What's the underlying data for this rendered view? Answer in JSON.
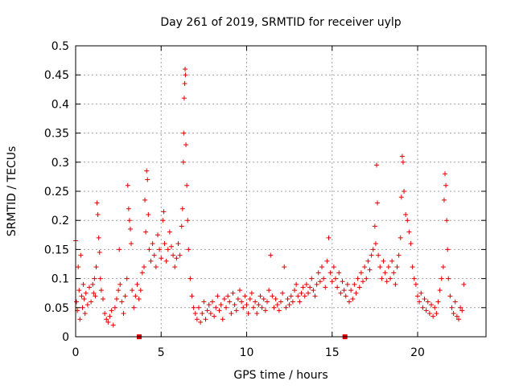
{
  "chart_data": {
    "type": "scatter",
    "title": "Day 261 of 2019, SRMTID for receiver uylp",
    "xlabel": "GPS time / hours",
    "ylabel": "SRMTID / TECUs",
    "xlim": [
      0,
      24
    ],
    "ylim": [
      0,
      0.5
    ],
    "grid": true,
    "x_ticks": [
      0,
      5,
      10,
      15,
      20
    ],
    "x_tick_labels": [
      "0",
      "5",
      "10",
      "15",
      "20"
    ],
    "y_ticks": [
      0,
      0.05,
      0.1,
      0.15,
      0.2,
      0.25,
      0.3,
      0.35,
      0.4,
      0.45,
      0.5
    ],
    "y_tick_labels": [
      "0",
      "0.05",
      "0.1",
      "0.15",
      "0.2",
      "0.25",
      "0.3",
      "0.35",
      "0.4",
      "0.45",
      "0.5"
    ],
    "series": [
      {
        "name": "SRMTID",
        "color": "#e00000",
        "marker": "plus",
        "points": [
          [
            0.0,
            0.165
          ],
          [
            0.05,
            0.06
          ],
          [
            0.1,
            0.045
          ],
          [
            0.15,
            0.12
          ],
          [
            0.2,
            0.08
          ],
          [
            0.25,
            0.03
          ],
          [
            0.3,
            0.14
          ],
          [
            0.35,
            0.07
          ],
          [
            0.4,
            0.05
          ],
          [
            0.45,
            0.09
          ],
          [
            0.5,
            0.065
          ],
          [
            0.55,
            0.04
          ],
          [
            0.6,
            0.075
          ],
          [
            0.7,
            0.055
          ],
          [
            0.8,
            0.085
          ],
          [
            0.9,
            0.06
          ],
          [
            1.0,
            0.09
          ],
          [
            1.05,
            0.075
          ],
          [
            1.1,
            0.1
          ],
          [
            1.15,
            0.07
          ],
          [
            1.2,
            0.12
          ],
          [
            1.25,
            0.23
          ],
          [
            1.3,
            0.21
          ],
          [
            1.35,
            0.17
          ],
          [
            1.4,
            0.145
          ],
          [
            1.45,
            0.1
          ],
          [
            1.5,
            0.08
          ],
          [
            1.6,
            0.065
          ],
          [
            1.7,
            0.04
          ],
          [
            1.8,
            0.03
          ],
          [
            1.9,
            0.025
          ],
          [
            2.0,
            0.035
          ],
          [
            2.1,
            0.045
          ],
          [
            2.2,
            0.02
          ],
          [
            2.3,
            0.05
          ],
          [
            2.4,
            0.065
          ],
          [
            2.5,
            0.08
          ],
          [
            2.55,
            0.15
          ],
          [
            2.6,
            0.09
          ],
          [
            2.7,
            0.06
          ],
          [
            2.8,
            0.04
          ],
          [
            2.9,
            0.07
          ],
          [
            3.0,
            0.1
          ],
          [
            3.05,
            0.26
          ],
          [
            3.1,
            0.22
          ],
          [
            3.15,
            0.2
          ],
          [
            3.2,
            0.185
          ],
          [
            3.25,
            0.16
          ],
          [
            3.3,
            0.08
          ],
          [
            3.4,
            0.05
          ],
          [
            3.5,
            0.07
          ],
          [
            3.6,
            0.09
          ],
          [
            3.7,
            0.065
          ],
          [
            3.8,
            0.08
          ],
          [
            3.9,
            0.11
          ],
          [
            4.0,
            0.12
          ],
          [
            4.05,
            0.235
          ],
          [
            4.1,
            0.18
          ],
          [
            4.15,
            0.285
          ],
          [
            4.2,
            0.27
          ],
          [
            4.25,
            0.21
          ],
          [
            4.3,
            0.15
          ],
          [
            4.4,
            0.13
          ],
          [
            4.5,
            0.16
          ],
          [
            4.6,
            0.14
          ],
          [
            4.7,
            0.12
          ],
          [
            4.8,
            0.175
          ],
          [
            4.9,
            0.15
          ],
          [
            5.0,
            0.135
          ],
          [
            5.1,
            0.2
          ],
          [
            5.15,
            0.215
          ],
          [
            5.2,
            0.16
          ],
          [
            5.3,
            0.13
          ],
          [
            5.4,
            0.15
          ],
          [
            5.5,
            0.18
          ],
          [
            5.6,
            0.155
          ],
          [
            5.7,
            0.14
          ],
          [
            5.8,
            0.12
          ],
          [
            5.9,
            0.135
          ],
          [
            6.0,
            0.16
          ],
          [
            6.1,
            0.14
          ],
          [
            6.2,
            0.19
          ],
          [
            6.25,
            0.22
          ],
          [
            6.3,
            0.3
          ],
          [
            6.32,
            0.35
          ],
          [
            6.35,
            0.41
          ],
          [
            6.38,
            0.435
          ],
          [
            6.4,
            0.46
          ],
          [
            6.42,
            0.45
          ],
          [
            6.45,
            0.33
          ],
          [
            6.5,
            0.26
          ],
          [
            6.55,
            0.2
          ],
          [
            6.6,
            0.15
          ],
          [
            6.7,
            0.1
          ],
          [
            6.8,
            0.07
          ],
          [
            6.9,
            0.05
          ],
          [
            7.0,
            0.04
          ],
          [
            7.1,
            0.03
          ],
          [
            7.2,
            0.05
          ],
          [
            7.3,
            0.025
          ],
          [
            7.4,
            0.04
          ],
          [
            7.5,
            0.06
          ],
          [
            7.6,
            0.03
          ],
          [
            7.7,
            0.045
          ],
          [
            7.8,
            0.055
          ],
          [
            7.9,
            0.04
          ],
          [
            8.0,
            0.06
          ],
          [
            8.1,
            0.035
          ],
          [
            8.2,
            0.05
          ],
          [
            8.3,
            0.07
          ],
          [
            8.4,
            0.045
          ],
          [
            8.5,
            0.055
          ],
          [
            8.6,
            0.03
          ],
          [
            8.7,
            0.065
          ],
          [
            8.8,
            0.05
          ],
          [
            8.9,
            0.07
          ],
          [
            9.0,
            0.06
          ],
          [
            9.1,
            0.04
          ],
          [
            9.2,
            0.075
          ],
          [
            9.3,
            0.055
          ],
          [
            9.4,
            0.045
          ],
          [
            9.5,
            0.065
          ],
          [
            9.6,
            0.08
          ],
          [
            9.7,
            0.06
          ],
          [
            9.8,
            0.05
          ],
          [
            9.9,
            0.07
          ],
          [
            10.0,
            0.055
          ],
          [
            10.1,
            0.04
          ],
          [
            10.2,
            0.065
          ],
          [
            10.3,
            0.075
          ],
          [
            10.4,
            0.05
          ],
          [
            10.5,
            0.06
          ],
          [
            10.6,
            0.04
          ],
          [
            10.7,
            0.055
          ],
          [
            10.8,
            0.07
          ],
          [
            10.9,
            0.05
          ],
          [
            11.0,
            0.065
          ],
          [
            11.1,
            0.045
          ],
          [
            11.2,
            0.06
          ],
          [
            11.3,
            0.08
          ],
          [
            11.4,
            0.14
          ],
          [
            11.5,
            0.07
          ],
          [
            11.6,
            0.05
          ],
          [
            11.7,
            0.065
          ],
          [
            11.8,
            0.055
          ],
          [
            11.9,
            0.045
          ],
          [
            12.0,
            0.06
          ],
          [
            12.1,
            0.075
          ],
          [
            12.2,
            0.12
          ],
          [
            12.3,
            0.05
          ],
          [
            12.4,
            0.065
          ],
          [
            12.5,
            0.055
          ],
          [
            12.6,
            0.07
          ],
          [
            12.7,
            0.06
          ],
          [
            12.8,
            0.08
          ],
          [
            12.9,
            0.09
          ],
          [
            13.0,
            0.07
          ],
          [
            13.1,
            0.06
          ],
          [
            13.2,
            0.075
          ],
          [
            13.3,
            0.085
          ],
          [
            13.4,
            0.07
          ],
          [
            13.5,
            0.09
          ],
          [
            13.6,
            0.075
          ],
          [
            13.7,
            0.085
          ],
          [
            13.8,
            0.1
          ],
          [
            13.9,
            0.08
          ],
          [
            14.0,
            0.07
          ],
          [
            14.1,
            0.09
          ],
          [
            14.2,
            0.11
          ],
          [
            14.3,
            0.095
          ],
          [
            14.4,
            0.12
          ],
          [
            14.5,
            0.1
          ],
          [
            14.6,
            0.085
          ],
          [
            14.7,
            0.13
          ],
          [
            14.8,
            0.17
          ],
          [
            14.9,
            0.11
          ],
          [
            15.0,
            0.095
          ],
          [
            15.1,
            0.12
          ],
          [
            15.2,
            0.1
          ],
          [
            15.3,
            0.085
          ],
          [
            15.4,
            0.11
          ],
          [
            15.5,
            0.075
          ],
          [
            15.6,
            0.095
          ],
          [
            15.7,
            0.08
          ],
          [
            15.8,
            0.07
          ],
          [
            15.9,
            0.09
          ],
          [
            16.0,
            0.06
          ],
          [
            16.1,
            0.08
          ],
          [
            16.2,
            0.065
          ],
          [
            16.3,
            0.09
          ],
          [
            16.4,
            0.075
          ],
          [
            16.5,
            0.1
          ],
          [
            16.6,
            0.085
          ],
          [
            16.7,
            0.11
          ],
          [
            16.8,
            0.095
          ],
          [
            16.9,
            0.12
          ],
          [
            17.0,
            0.1
          ],
          [
            17.1,
            0.13
          ],
          [
            17.2,
            0.115
          ],
          [
            17.3,
            0.14
          ],
          [
            17.4,
            0.15
          ],
          [
            17.5,
            0.19
          ],
          [
            17.55,
            0.16
          ],
          [
            17.6,
            0.295
          ],
          [
            17.65,
            0.23
          ],
          [
            17.7,
            0.14
          ],
          [
            17.8,
            0.12
          ],
          [
            17.9,
            0.1
          ],
          [
            18.0,
            0.13
          ],
          [
            18.1,
            0.11
          ],
          [
            18.2,
            0.095
          ],
          [
            18.3,
            0.12
          ],
          [
            18.4,
            0.1
          ],
          [
            18.5,
            0.13
          ],
          [
            18.6,
            0.11
          ],
          [
            18.7,
            0.09
          ],
          [
            18.8,
            0.12
          ],
          [
            18.9,
            0.14
          ],
          [
            19.0,
            0.17
          ],
          [
            19.05,
            0.24
          ],
          [
            19.1,
            0.31
          ],
          [
            19.15,
            0.3
          ],
          [
            19.2,
            0.25
          ],
          [
            19.3,
            0.21
          ],
          [
            19.4,
            0.2
          ],
          [
            19.5,
            0.18
          ],
          [
            19.6,
            0.16
          ],
          [
            19.7,
            0.12
          ],
          [
            19.8,
            0.1
          ],
          [
            19.9,
            0.09
          ],
          [
            20.0,
            0.07
          ],
          [
            20.1,
            0.06
          ],
          [
            20.2,
            0.075
          ],
          [
            20.3,
            0.05
          ],
          [
            20.4,
            0.065
          ],
          [
            20.5,
            0.045
          ],
          [
            20.6,
            0.06
          ],
          [
            20.7,
            0.04
          ],
          [
            20.8,
            0.055
          ],
          [
            20.9,
            0.035
          ],
          [
            21.0,
            0.05
          ],
          [
            21.1,
            0.04
          ],
          [
            21.2,
            0.06
          ],
          [
            21.3,
            0.08
          ],
          [
            21.4,
            0.1
          ],
          [
            21.5,
            0.12
          ],
          [
            21.55,
            0.235
          ],
          [
            21.6,
            0.28
          ],
          [
            21.65,
            0.26
          ],
          [
            21.7,
            0.2
          ],
          [
            21.75,
            0.15
          ],
          [
            21.8,
            0.1
          ],
          [
            21.9,
            0.07
          ],
          [
            22.0,
            0.05
          ],
          [
            22.1,
            0.04
          ],
          [
            22.2,
            0.06
          ],
          [
            22.3,
            0.035
          ],
          [
            22.4,
            0.03
          ],
          [
            22.5,
            0.05
          ],
          [
            22.6,
            0.045
          ],
          [
            22.7,
            0.09
          ]
        ]
      }
    ],
    "gap_markers": [
      3.72,
      15.75
    ]
  }
}
